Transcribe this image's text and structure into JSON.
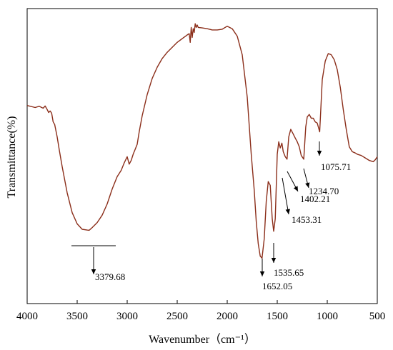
{
  "chart_data": {
    "type": "line",
    "title": "",
    "xlabel": "Wavenumber（cm⁻¹）",
    "ylabel": "Transmittance(%)",
    "xlim": [
      4000,
      500
    ],
    "x_reversed": true,
    "ylim": [
      0,
      100
    ],
    "y_ticks_shown": false,
    "x_ticks": [
      4000,
      3500,
      3000,
      2500,
      2000,
      1500,
      1000,
      500
    ],
    "x_tick_labels": [
      "4000",
      "3500",
      "3000",
      "2500",
      "2000",
      "1500",
      "1000",
      "500"
    ],
    "grid": false,
    "line_color": "#8B2E1A",
    "series": [
      {
        "name": "",
        "x": [
          4000,
          3920,
          3880,
          3840,
          3820,
          3800,
          3785,
          3770,
          3755,
          3740,
          3725,
          3710,
          3700,
          3680,
          3650,
          3600,
          3550,
          3500,
          3450,
          3400,
          3379.68,
          3350,
          3300,
          3250,
          3200,
          3150,
          3100,
          3060,
          3030,
          3000,
          2980,
          2960,
          2940,
          2920,
          2900,
          2880,
          2850,
          2800,
          2750,
          2700,
          2650,
          2600,
          2550,
          2500,
          2450,
          2400,
          2380,
          2370,
          2360,
          2350,
          2340,
          2330,
          2320,
          2310,
          2300,
          2290,
          2250,
          2200,
          2150,
          2100,
          2050,
          2000,
          1950,
          1900,
          1850,
          1800,
          1760,
          1730,
          1710,
          1690,
          1670,
          1652.05,
          1630,
          1610,
          1590,
          1570,
          1550,
          1535.65,
          1520,
          1500,
          1485,
          1470,
          1453.31,
          1440,
          1420,
          1402.21,
          1385,
          1365,
          1345,
          1320,
          1300,
          1280,
          1260,
          1234.7,
          1215,
          1200,
          1180,
          1160,
          1140,
          1120,
          1100,
          1075.71,
          1050,
          1020,
          990,
          960,
          930,
          900,
          870,
          840,
          810,
          780,
          750,
          720,
          700,
          660,
          620,
          580,
          540,
          520,
          500
        ],
        "y": [
          65.6,
          64.8,
          65.3,
          64.5,
          65.4,
          64.0,
          62.8,
          63.4,
          62.5,
          59.0,
          58.0,
          55.0,
          53.0,
          48.0,
          41.0,
          30.5,
          22.5,
          18.0,
          15.8,
          15.5,
          15.4,
          16.5,
          18.5,
          21.5,
          26.0,
          32.0,
          37.0,
          39.5,
          42.5,
          45.0,
          42.0,
          43.5,
          46.0,
          48.0,
          50.0,
          55.0,
          61.5,
          70.0,
          76.5,
          81.0,
          84.5,
          87.0,
          89.0,
          91.0,
          92.5,
          94.0,
          94.5,
          91.0,
          97.0,
          93.0,
          96.5,
          95.0,
          98.5,
          97.0,
          98.0,
          97.0,
          96.8,
          96.5,
          96.0,
          96.0,
          96.3,
          97.5,
          96.5,
          93.5,
          86.0,
          69.0,
          46.0,
          31.5,
          19.0,
          10.0,
          5.0,
          4.2,
          12.0,
          27.0,
          35.0,
          33.5,
          20.0,
          15.0,
          20.0,
          46.0,
          51.0,
          48.5,
          50.5,
          47.0,
          45.0,
          44.0,
          53.0,
          56.0,
          54.5,
          52.5,
          51.0,
          49.0,
          45.5,
          44.0,
          57.0,
          61.0,
          62.0,
          60.5,
          60.5,
          59.0,
          58.5,
          55.0,
          76.0,
          83.5,
          86.5,
          86.0,
          84.0,
          80.0,
          73.0,
          64.0,
          56.0,
          49.0,
          47.0,
          46.5,
          46.0,
          45.5,
          44.5,
          43.5,
          43.0,
          43.8,
          45.0
        ]
      }
    ],
    "annotations": [
      {
        "label": "3379.68",
        "x": 3379.68
      },
      {
        "label": "1652.05",
        "x": 1652.05
      },
      {
        "label": "1535.65",
        "x": 1535.65
      },
      {
        "label": "1453.31",
        "x": 1453.31
      },
      {
        "label": "1402.21",
        "x": 1402.21
      },
      {
        "label": "1234.70",
        "x": 1234.7
      },
      {
        "label": "1075.71",
        "x": 1075.71
      }
    ]
  }
}
